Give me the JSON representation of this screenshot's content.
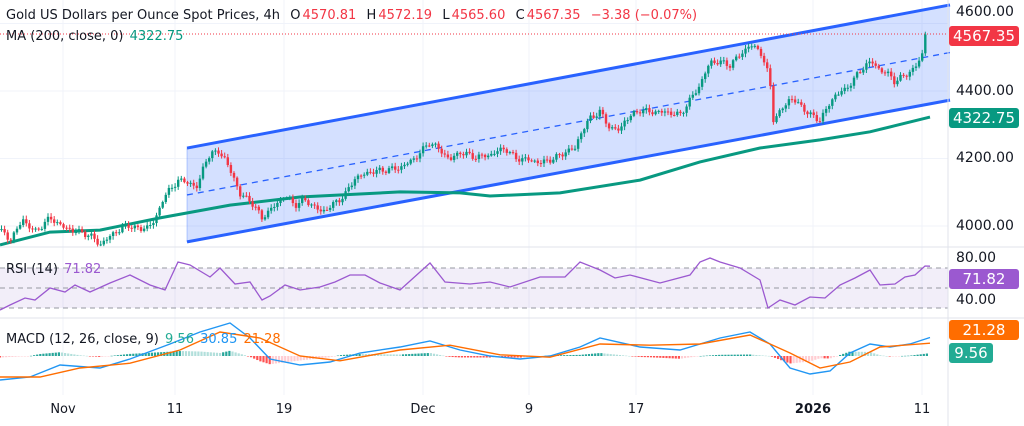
{
  "header": {
    "title": "Gold US Dollars per Ounce Spot Prices, 4h",
    "open_label": "O",
    "open": "4570.81",
    "high_label": "H",
    "high": "4572.19",
    "low_label": "L",
    "low": "4565.60",
    "close_label": "C",
    "close": "4567.35",
    "change": "−3.38 (−0.07%)",
    "ma_label": "MA (200, close, 0)",
    "ma_value": "4322.75"
  },
  "rsi_legend": {
    "label": "RSI (14)",
    "value": "71.82"
  },
  "macd_legend": {
    "label": "MACD (12, 26, close, 9)",
    "hist": "9.56",
    "macd": "30.85",
    "signal": "21.28"
  },
  "tags": {
    "price": "4567.35",
    "ma": "4322.75",
    "rsi": "71.82",
    "signal": "21.28",
    "hist": "9.56"
  },
  "colors": {
    "up": "#089981",
    "down": "#f23645",
    "channel": "#2962ff",
    "ma": "#089981",
    "rsi": "#9b59d0",
    "macd": "#2196f3",
    "signal": "#ff6d00"
  },
  "chart_data": [
    {
      "type": "candlestick",
      "title": "Gold US Dollars per Ounce Spot Prices, 4h",
      "x_unit": "session index",
      "xlim": [
        0,
        190
      ],
      "ylim": [
        3930,
        4660
      ],
      "y_ticks": [
        "4000.00",
        "4200.00",
        "4400.00",
        "4600.00"
      ],
      "y_tick_values": [
        4000,
        4200,
        4400,
        4600
      ],
      "x_ticks": [
        {
          "x": 12.6,
          "label": "Nov"
        },
        {
          "x": 35,
          "label": "11"
        },
        {
          "x": 56.8,
          "label": "19"
        },
        {
          "x": 84.6,
          "label": "Dec"
        },
        {
          "x": 105.8,
          "label": "9"
        },
        {
          "x": 127.2,
          "label": "17"
        },
        {
          "x": 162.6,
          "label": "2026"
        },
        {
          "x": 184.4,
          "label": "11"
        }
      ],
      "close_path": [
        [
          0,
          3988
        ],
        [
          2,
          3959
        ],
        [
          4.6,
          4018
        ],
        [
          7,
          3982
        ],
        [
          10,
          4024
        ],
        [
          13,
          3994
        ],
        [
          18,
          3973
        ],
        [
          20,
          3944
        ],
        [
          23,
          3982
        ],
        [
          26,
          4003
        ],
        [
          28,
          3988
        ],
        [
          31,
          4012
        ],
        [
          32.4,
          4077
        ],
        [
          34,
          4107
        ],
        [
          35.6,
          4136
        ],
        [
          38,
          4127
        ],
        [
          39.6,
          4113
        ],
        [
          41,
          4196
        ],
        [
          43.6,
          4225
        ],
        [
          45,
          4196
        ],
        [
          47,
          4136
        ],
        [
          48,
          4092
        ],
        [
          50,
          4077
        ],
        [
          52.4,
          4024
        ],
        [
          54,
          4047
        ],
        [
          57,
          4089
        ],
        [
          59,
          4062
        ],
        [
          61,
          4077
        ],
        [
          64.4,
          4041
        ],
        [
          67,
          4068
        ],
        [
          69,
          4092
        ],
        [
          71,
          4142
        ],
        [
          74,
          4160
        ],
        [
          77,
          4166
        ],
        [
          80,
          4172
        ],
        [
          83,
          4201
        ],
        [
          86,
          4249
        ],
        [
          88,
          4225
        ],
        [
          90,
          4196
        ],
        [
          92,
          4219
        ],
        [
          95,
          4204
        ],
        [
          98,
          4210
        ],
        [
          100,
          4225
        ],
        [
          101,
          4231
        ],
        [
          103,
          4201
        ],
        [
          106,
          4196
        ],
        [
          108,
          4187
        ],
        [
          111,
          4201
        ],
        [
          113,
          4219
        ],
        [
          115,
          4231
        ],
        [
          116,
          4270
        ],
        [
          118,
          4320
        ],
        [
          120,
          4338
        ],
        [
          122,
          4290
        ],
        [
          124,
          4284
        ],
        [
          125,
          4314
        ],
        [
          128,
          4344
        ],
        [
          130,
          4338
        ],
        [
          133,
          4338
        ],
        [
          136,
          4329
        ],
        [
          138,
          4373
        ],
        [
          140,
          4418
        ],
        [
          142,
          4486
        ],
        [
          144,
          4486
        ],
        [
          146,
          4477
        ],
        [
          148,
          4507
        ],
        [
          150,
          4536
        ],
        [
          152,
          4521
        ],
        [
          153,
          4477
        ],
        [
          154,
          4433
        ],
        [
          154.4,
          4314
        ],
        [
          155.6,
          4329
        ],
        [
          158,
          4379
        ],
        [
          160,
          4359
        ],
        [
          162,
          4329
        ],
        [
          164,
          4314
        ],
        [
          165.2,
          4344
        ],
        [
          167,
          4388
        ],
        [
          169,
          4403
        ],
        [
          171,
          4439
        ],
        [
          173,
          4477
        ],
        [
          174.4,
          4486
        ],
        [
          176,
          4462
        ],
        [
          178,
          4447
        ],
        [
          179,
          4427
        ],
        [
          181,
          4447
        ],
        [
          183,
          4468
        ],
        [
          184.4,
          4507
        ],
        [
          185.6,
          4567.35
        ]
      ],
      "ma200": [
        [
          0,
          3944
        ],
        [
          10,
          3982
        ],
        [
          20,
          3988
        ],
        [
          32,
          4024
        ],
        [
          46,
          4062
        ],
        [
          60,
          4086
        ],
        [
          80,
          4101
        ],
        [
          92,
          4098
        ],
        [
          98,
          4089
        ],
        [
          112,
          4098
        ],
        [
          128,
          4136
        ],
        [
          140,
          4190
        ],
        [
          152,
          4231
        ],
        [
          164,
          4255
        ],
        [
          174,
          4279
        ],
        [
          186,
          4322.75
        ]
      ],
      "channel": {
        "upper": [
          [
            37.4,
            4231
          ],
          [
            190,
            4655
          ]
        ],
        "lower": [
          [
            37.4,
            3953
          ],
          [
            190,
            4373
          ]
        ]
      },
      "current_price": 4567.35
    },
    {
      "type": "line",
      "title": "RSI (14)",
      "ylim": [
        20,
        90
      ],
      "levels": [
        70,
        50,
        30
      ],
      "y_ticks": [
        "40.00",
        "80.00"
      ],
      "values": [
        [
          0,
          28
        ],
        [
          2,
          33
        ],
        [
          5,
          40
        ],
        [
          7,
          38
        ],
        [
          10,
          50
        ],
        [
          13,
          46
        ],
        [
          15,
          53
        ],
        [
          18,
          46
        ],
        [
          22,
          55
        ],
        [
          26,
          63
        ],
        [
          30,
          53
        ],
        [
          33,
          48
        ],
        [
          35.6,
          76
        ],
        [
          38,
          73
        ],
        [
          42,
          61
        ],
        [
          44,
          70
        ],
        [
          47,
          54
        ],
        [
          50,
          56
        ],
        [
          52.4,
          38
        ],
        [
          54,
          42
        ],
        [
          57,
          53
        ],
        [
          60,
          48
        ],
        [
          64,
          51
        ],
        [
          67,
          56
        ],
        [
          70,
          63
        ],
        [
          73,
          63
        ],
        [
          76,
          55
        ],
        [
          80,
          48
        ],
        [
          84,
          66
        ],
        [
          86,
          75
        ],
        [
          89,
          56
        ],
        [
          94,
          54
        ],
        [
          98,
          56
        ],
        [
          102,
          51
        ],
        [
          108,
          61
        ],
        [
          113,
          61
        ],
        [
          116,
          76
        ],
        [
          120,
          68
        ],
        [
          123,
          60
        ],
        [
          126,
          63
        ],
        [
          132,
          55
        ],
        [
          138,
          63
        ],
        [
          140,
          76
        ],
        [
          142,
          80
        ],
        [
          144,
          76
        ],
        [
          148,
          70
        ],
        [
          152,
          58
        ],
        [
          153.6,
          30
        ],
        [
          156,
          38
        ],
        [
          159,
          33
        ],
        [
          162,
          41
        ],
        [
          165,
          40
        ],
        [
          168,
          53
        ],
        [
          171,
          60
        ],
        [
          174,
          68
        ],
        [
          176,
          53
        ],
        [
          179,
          54
        ],
        [
          181,
          61
        ],
        [
          183,
          63
        ],
        [
          185,
          72
        ],
        [
          186,
          71.82
        ]
      ]
    },
    {
      "type": "line",
      "title": "MACD (12, 26, close, 9)",
      "macd": [
        [
          0,
          -40
        ],
        [
          6,
          -35
        ],
        [
          12,
          -15
        ],
        [
          20,
          -20
        ],
        [
          26,
          -5
        ],
        [
          34,
          20
        ],
        [
          40,
          40
        ],
        [
          46,
          55
        ],
        [
          50,
          30
        ],
        [
          54,
          -5
        ],
        [
          60,
          -15
        ],
        [
          66,
          -10
        ],
        [
          72,
          5
        ],
        [
          80,
          15
        ],
        [
          86,
          25
        ],
        [
          92,
          10
        ],
        [
          98,
          0
        ],
        [
          104,
          -5
        ],
        [
          110,
          0
        ],
        [
          116,
          15
        ],
        [
          120,
          30
        ],
        [
          128,
          15
        ],
        [
          136,
          10
        ],
        [
          144,
          30
        ],
        [
          150,
          40
        ],
        [
          154,
          20
        ],
        [
          158,
          -20
        ],
        [
          162,
          -30
        ],
        [
          166,
          -25
        ],
        [
          170,
          5
        ],
        [
          174,
          20
        ],
        [
          178,
          15
        ],
        [
          182,
          20
        ],
        [
          186,
          30.85
        ]
      ],
      "signal": [
        [
          0,
          -35
        ],
        [
          8,
          -35
        ],
        [
          16,
          -20
        ],
        [
          26,
          -12
        ],
        [
          36,
          10
        ],
        [
          44,
          40
        ],
        [
          52,
          30
        ],
        [
          60,
          0
        ],
        [
          68,
          -8
        ],
        [
          80,
          10
        ],
        [
          90,
          18
        ],
        [
          100,
          2
        ],
        [
          110,
          -2
        ],
        [
          120,
          20
        ],
        [
          130,
          18
        ],
        [
          140,
          20
        ],
        [
          150,
          35
        ],
        [
          158,
          5
        ],
        [
          164,
          -20
        ],
        [
          170,
          -10
        ],
        [
          176,
          15
        ],
        [
          186,
          21.28
        ]
      ]
    }
  ]
}
